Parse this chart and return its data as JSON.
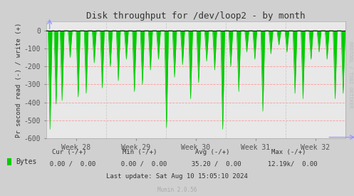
{
  "title": "Disk throughput for /dev/loop2 - by month",
  "ylabel": "Pr second read (-) / write (+)",
  "xlabel_ticks": [
    "Week 28",
    "Week 29",
    "Week 30",
    "Week 31",
    "Week 32"
  ],
  "ylim": [
    -600,
    50
  ],
  "bg_color": "#d0d0d0",
  "plot_bg_color": "#e8e8e8",
  "grid_color_h": "#ff9999",
  "grid_color_v": "#cccccc",
  "line_color": "#00cc00",
  "area_color": "#00cc00",
  "spine_color": "#aaaaaa",
  "watermark": "RRDTOOL / TOBI OETIKER",
  "legend_label": "Bytes",
  "legend_color": "#00cc00",
  "cur_neg": "0.00",
  "cur_pos": "0.00",
  "min_neg": "0.00",
  "min_pos": "0.00",
  "avg_neg": "35.20",
  "avg_pos": "0.00",
  "max_neg": "12.19k/",
  "max_pos": "0.00",
  "last_update": "Last update: Sat Aug 10 15:05:10 2024",
  "munin_version": "Munin 2.0.56",
  "title_color": "#333333",
  "text_color": "#333333",
  "tick_color": "#555555",
  "spike_positions": [
    2,
    5,
    8,
    12,
    16,
    20,
    24,
    28,
    32,
    36,
    40,
    44,
    48,
    52,
    56,
    60,
    64,
    68,
    72,
    76,
    80,
    84,
    88,
    92,
    96,
    100,
    104,
    108,
    112,
    116,
    120,
    124,
    128,
    132,
    136,
    140,
    144,
    148
  ],
  "spike_values": [
    -550,
    -410,
    -390,
    -150,
    -370,
    -350,
    -180,
    -320,
    -200,
    -280,
    -160,
    -340,
    -300,
    -220,
    -160,
    -540,
    -260,
    -190,
    -380,
    -290,
    -170,
    -220,
    -550,
    -200,
    -340,
    -120,
    -160,
    -450,
    -130,
    -80,
    -120,
    -350,
    -380,
    -160,
    -120,
    -160,
    -380,
    -350
  ]
}
